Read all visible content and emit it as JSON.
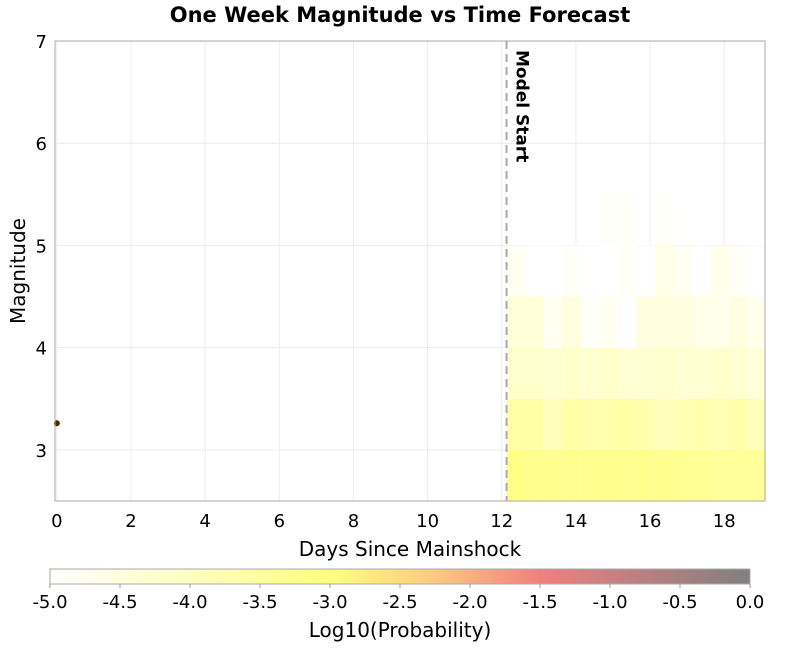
{
  "chart_data": {
    "type": "heatmap",
    "title": "One Week Magnitude vs Time Forecast",
    "xlabel": "Days Since Mainshock",
    "ylabel": "Magnitude",
    "xlim": [
      -0.05,
      19.1
    ],
    "ylim": [
      2.5,
      7
    ],
    "xticks": [
      "0",
      "2",
      "4",
      "6",
      "8",
      "10",
      "12",
      "14",
      "16",
      "18"
    ],
    "yticks": [
      "3",
      "4",
      "5",
      "6",
      "7"
    ],
    "grid": true,
    "model_start": {
      "x": 12.13,
      "label": "Model Start"
    },
    "observed_points": [
      {
        "x": 0.0,
        "y": 3.26
      }
    ],
    "point_color": "#4a2a00",
    "heatmap": {
      "x_bin_start": 12.13,
      "x_bin_width": 0.5,
      "y_bin_edges": [
        2.5,
        3.0,
        3.5,
        4.0,
        4.5,
        5.0,
        5.5
      ],
      "values_log10_by_row": [
        [
          -3.1,
          -3.2,
          -3.2,
          -3.2,
          -3.2,
          -3.2,
          -3.2,
          -3.2,
          -3.2,
          -3.3,
          -3.3,
          -3.4,
          -3.4,
          -3.4
        ],
        [
          -3.6,
          -3.6,
          -3.9,
          -3.6,
          -3.7,
          -3.7,
          -3.6,
          -3.7,
          -3.9,
          -3.8,
          -3.7,
          -3.8,
          -3.7,
          -3.9
        ],
        [
          -4.2,
          -4.2,
          -4.3,
          -4.2,
          -4.3,
          -4.2,
          -4.3,
          -4.3,
          -4.2,
          -4.3,
          -4.3,
          -4.2,
          -4.3,
          -4.4
        ],
        [
          -4.4,
          -4.4,
          -4.8,
          -4.5,
          -4.9,
          -4.8,
          -5.0,
          -4.5,
          -4.5,
          -4.5,
          -4.6,
          -4.7,
          -4.5,
          -4.7
        ],
        [
          -4.8,
          -5.0,
          -5.0,
          -4.9,
          -5.0,
          -5.0,
          -4.9,
          -5.0,
          -4.6,
          -4.8,
          -5.0,
          -4.7,
          -4.9,
          -5.0
        ],
        [
          null,
          null,
          null,
          null,
          null,
          -4.9,
          -4.9,
          null,
          -4.9,
          null,
          null,
          null,
          null,
          null
        ]
      ]
    },
    "colorbar": {
      "label": "Log10(Probability)",
      "range": [
        -5.0,
        0.0
      ],
      "ticks": [
        "-5.0",
        "-4.5",
        "-4.0",
        "-3.5",
        "-3.0",
        "-2.5",
        "-2.0",
        "-1.5",
        "-1.0",
        "-0.5",
        "0.0"
      ],
      "colormap": [
        {
          "value": -5.0,
          "color": "#ffffff"
        },
        {
          "value": -3.0,
          "color": "#ffff80"
        },
        {
          "value": -2.25,
          "color": "#ffc880"
        },
        {
          "value": -1.5,
          "color": "#f08080"
        },
        {
          "value": 0.0,
          "color": "#808080"
        }
      ]
    }
  }
}
